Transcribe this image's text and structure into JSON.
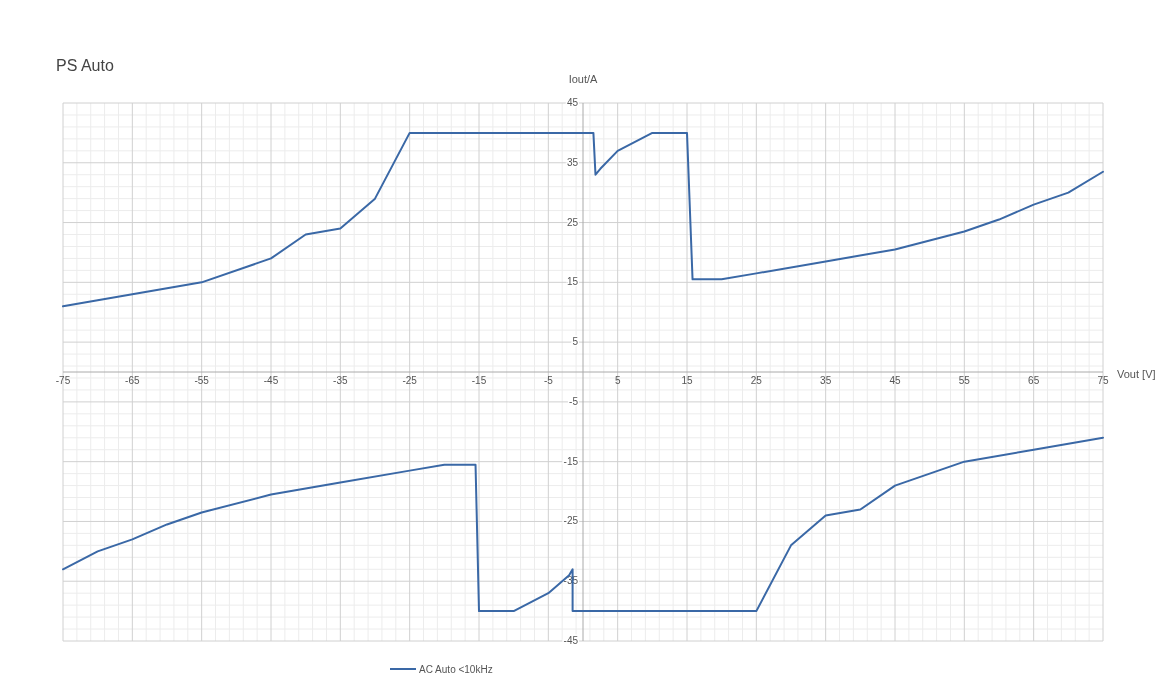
{
  "chart_data": {
    "type": "line",
    "title": "PS Auto",
    "xlabel": "Vout [V]",
    "ylabel": "Iout/A",
    "xlim": [
      -75,
      75
    ],
    "ylim": [
      -45,
      45
    ],
    "xticks": [
      -75,
      -65,
      -55,
      -45,
      -35,
      -25,
      -15,
      -5,
      5,
      15,
      25,
      35,
      45,
      55,
      65,
      75
    ],
    "yticks": [
      -45,
      -35,
      -25,
      -15,
      -5,
      5,
      15,
      25,
      35,
      45
    ],
    "grid": true,
    "legend": "bottom",
    "marker": "none",
    "line_style": "solid",
    "series": [
      {
        "name": "AC Auto <10kHz",
        "color": "#3a68a6",
        "x": [
          -75,
          -70,
          -65,
          -55,
          -45,
          -40,
          -35,
          -30,
          -25,
          1.5,
          1.8,
          2.5,
          5,
          10,
          15,
          15.8,
          20,
          25,
          35,
          45,
          55,
          60,
          65,
          70,
          75,
          null,
          -75,
          -70,
          -65,
          -60,
          -55,
          -45,
          -35,
          -25,
          -20,
          -15.5,
          -15,
          -10,
          -5,
          -2,
          -1.5,
          -1.5,
          25,
          30,
          35,
          40,
          45,
          55,
          65,
          75
        ],
        "values": [
          11,
          12,
          13,
          15,
          19,
          23,
          24,
          29,
          40,
          40,
          33,
          34,
          37,
          40,
          40,
          15.5,
          15.5,
          16.5,
          18.5,
          20.5,
          23.5,
          25.5,
          28,
          30,
          33.5,
          null,
          -33,
          -30,
          -28,
          -25.5,
          -23.5,
          -20.5,
          -18.5,
          -16.5,
          -15.5,
          -15.5,
          -40,
          -40,
          -37,
          -34,
          -33,
          -40,
          -40,
          -29,
          -24,
          -23,
          -19,
          -15,
          -13,
          -11
        ]
      }
    ]
  }
}
